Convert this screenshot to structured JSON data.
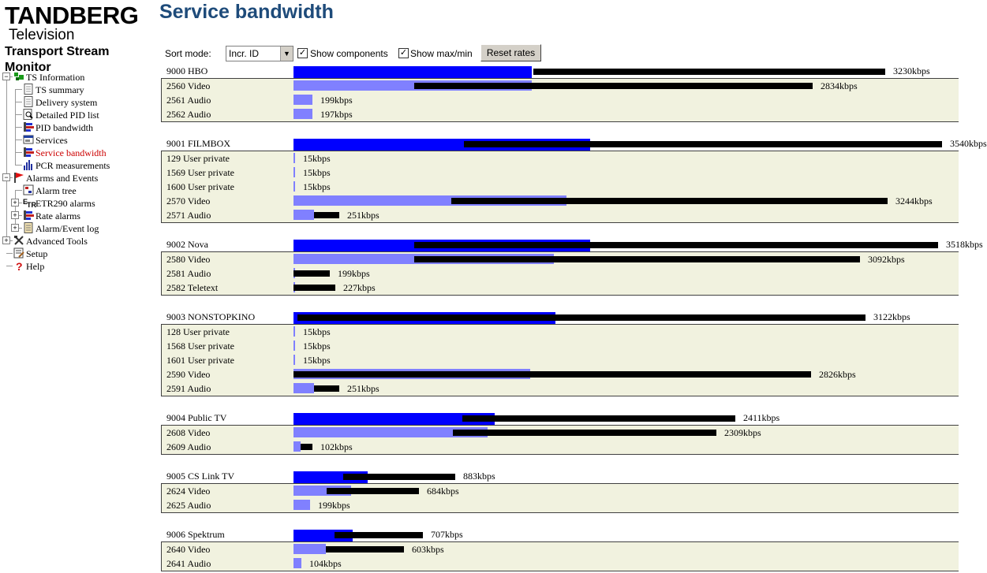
{
  "logo": {
    "brand": "TANDBERG",
    "sub": "Television",
    "product": "Transport Stream Monitor"
  },
  "nav": [
    {
      "label": "TS Information",
      "icon": "ts-info-icon",
      "expanded": true
    },
    {
      "label": "TS summary",
      "icon": "document-icon"
    },
    {
      "label": "Delivery system",
      "icon": "document-icon"
    },
    {
      "label": "Detailed PID list",
      "icon": "magnifier-icon"
    },
    {
      "label": "PID bandwidth",
      "icon": "bandwidth-icon"
    },
    {
      "label": "Services",
      "icon": "services-icon"
    },
    {
      "label": "Service bandwidth",
      "icon": "bandwidth-icon",
      "active": true
    },
    {
      "label": "PCR measurements",
      "icon": "chart-icon"
    },
    {
      "label": "Alarms and Events",
      "icon": "flag-icon",
      "expanded": true
    },
    {
      "label": "Alarm tree",
      "icon": "alarm-tree-icon"
    },
    {
      "label": "ETR290 alarms",
      "icon": "etr-icon"
    },
    {
      "label": "Rate alarms",
      "icon": "bandwidth-icon"
    },
    {
      "label": "Alarm/Event log",
      "icon": "log-icon"
    },
    {
      "label": "Advanced Tools",
      "icon": "tools-icon"
    },
    {
      "label": "Setup",
      "icon": "setup-icon"
    },
    {
      "label": "Help",
      "icon": "help-icon"
    }
  ],
  "title": "Service bandwidth",
  "controls": {
    "sort_label": "Sort mode:",
    "sort_value": "Incr. ID",
    "show_components_label": "Show components",
    "show_components_checked": true,
    "show_maxmin_label": "Show max/min",
    "show_maxmin_checked": true,
    "reset_label": "Reset rates"
  },
  "colors": {
    "service_bar": "#0000ff",
    "component_bar": "#8080ff",
    "maxmin_bar": "#000000",
    "component_bg": "#f1f2df",
    "title": "#1e4b7a",
    "active_nav": "#cc0000"
  },
  "scale_max_kbps": 3630,
  "services": [
    {
      "label": "9000 HBO",
      "rate": 1300,
      "min": 1310,
      "max": 3230,
      "value": "3230kbps",
      "components": [
        {
          "label": "2560 Video",
          "rate": 1300,
          "min": 660,
          "max": 2834,
          "value": "2834kbps"
        },
        {
          "label": "2561 Audio",
          "rate": 104,
          "min": 0,
          "max": 0,
          "value": "199kbps"
        },
        {
          "label": "2562 Audio",
          "rate": 104,
          "min": 0,
          "max": 0,
          "value": "197kbps"
        }
      ]
    },
    {
      "label": "9001 FILMBOX",
      "rate": 1620,
      "min": 930,
      "max": 3540,
      "value": "3540kbps",
      "components": [
        {
          "label": "129 User private",
          "rate": 6,
          "min": 0,
          "max": 0,
          "value": "15kbps"
        },
        {
          "label": "1569 User private",
          "rate": 6,
          "min": 0,
          "max": 0,
          "value": "15kbps"
        },
        {
          "label": "1600 User private",
          "rate": 6,
          "min": 0,
          "max": 0,
          "value": "15kbps"
        },
        {
          "label": "2570 Video",
          "rate": 1490,
          "min": 860,
          "max": 3244,
          "value": "3244kbps"
        },
        {
          "label": "2571 Audio",
          "rate": 110,
          "min": 110,
          "max": 251,
          "value": "251kbps"
        }
      ]
    },
    {
      "label": "9002 Nova",
      "rate": 1620,
      "min": 660,
      "max": 3518,
      "value": "3518kbps",
      "components": [
        {
          "label": "2580 Video",
          "rate": 1420,
          "min": 660,
          "max": 3092,
          "value": "3092kbps"
        },
        {
          "label": "2581 Audio",
          "rate": 0,
          "min": 0,
          "max": 199,
          "value": "199kbps"
        },
        {
          "label": "2582 Teletext",
          "rate": 0,
          "min": 0,
          "max": 227,
          "value": "227kbps"
        }
      ]
    },
    {
      "label": "9003 NONSTOPKINO",
      "rate": 1430,
      "min": 20,
      "max": 3122,
      "value": "3122kbps",
      "components": [
        {
          "label": "128 User private",
          "rate": 6,
          "min": 0,
          "max": 0,
          "value": "15kbps"
        },
        {
          "label": "1568 User private",
          "rate": 6,
          "min": 0,
          "max": 0,
          "value": "15kbps"
        },
        {
          "label": "1601 User private",
          "rate": 6,
          "min": 0,
          "max": 0,
          "value": "15kbps"
        },
        {
          "label": "2590 Video",
          "rate": 1290,
          "min": 0,
          "max": 2826,
          "value": "2826kbps"
        },
        {
          "label": "2591 Audio",
          "rate": 110,
          "min": 110,
          "max": 251,
          "value": "251kbps"
        }
      ]
    },
    {
      "label": "9004 Public TV",
      "rate": 1100,
      "min": 920,
      "max": 2411,
      "value": "2411kbps",
      "components": [
        {
          "label": "2608 Video",
          "rate": 1060,
          "min": 870,
          "max": 2309,
          "value": "2309kbps"
        },
        {
          "label": "2609 Audio",
          "rate": 40,
          "min": 40,
          "max": 102,
          "value": "102kbps"
        }
      ]
    },
    {
      "label": "9005 CS Link TV",
      "rate": 405,
      "min": 270,
      "max": 883,
      "value": "883kbps",
      "components": [
        {
          "label": "2624 Video",
          "rate": 315,
          "min": 180,
          "max": 684,
          "value": "684kbps"
        },
        {
          "label": "2625 Audio",
          "rate": 92,
          "min": 0,
          "max": 0,
          "value": "199kbps"
        }
      ]
    },
    {
      "label": "9006 Spektrum",
      "rate": 325,
      "min": 225,
      "max": 707,
      "value": "707kbps",
      "components": [
        {
          "label": "2640 Video",
          "rate": 177,
          "min": 177,
          "max": 603,
          "value": "603kbps"
        },
        {
          "label": "2641 Audio",
          "rate": 45,
          "min": 0,
          "max": 0,
          "value": "104kbps"
        }
      ]
    }
  ]
}
